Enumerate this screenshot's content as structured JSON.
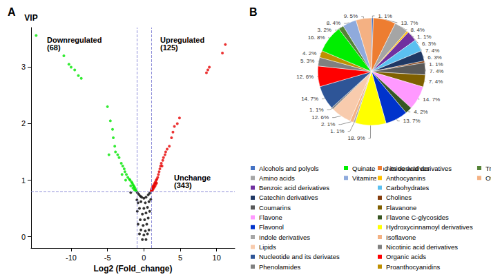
{
  "chart_data": [
    {
      "type": "scatter",
      "title": "A",
      "x_label": "Log2 (Fold_change)",
      "y_label": "VIP",
      "xlim": [
        -15.5,
        12.5
      ],
      "xticks": [
        -10,
        -5,
        0,
        5,
        10
      ],
      "ylim": [
        -0.2,
        3.7
      ],
      "yticks": [
        0,
        1,
        2,
        3
      ],
      "grid": false,
      "marker": "circle",
      "thresholds": {
        "x": [
          -1,
          1
        ],
        "y": 0.8,
        "line_style": "dashed",
        "color": "#8c8cd8"
      },
      "annotations": [
        "Downregulated\n(68)",
        "Upregulated\n(125)",
        "Unchange\n(343)"
      ],
      "series": [
        {
          "color": "#00e600",
          "x": [
            -14.8,
            -11,
            -10.3,
            -10,
            -9.5,
            -9,
            -8.6,
            -5,
            -4.6,
            -4.3,
            -4.2,
            -4,
            -3.9,
            -3.6,
            -3.4,
            -3.1,
            -2.9,
            -2.7,
            -2.6,
            -2.4,
            -2.2,
            -2,
            -1.9,
            -1.7,
            -1.6,
            -1.5,
            -1.4,
            -1.3,
            -1.2,
            -1.1,
            -1.05,
            -1.3,
            -1.5,
            -1.8,
            -2.5,
            -3,
            -4.8
          ],
          "values": [
            3.56,
            3.2,
            3.05,
            3.0,
            2.95,
            2.85,
            2.8,
            2.3,
            2.05,
            1.9,
            1.75,
            1.6,
            1.5,
            1.45,
            1.4,
            1.3,
            1.25,
            1.2,
            1.15,
            1.1,
            1.05,
            1.02,
            1.0,
            0.97,
            0.95,
            0.92,
            0.9,
            0.88,
            0.85,
            0.82,
            0.81,
            0.83,
            0.86,
            0.9,
            1.0,
            1.1,
            1.45
          ]
        },
        {
          "color": "#e60000",
          "x": [
            11.2,
            10.8,
            9,
            8.8,
            8.6,
            4.9,
            4.6,
            4.2,
            4.0,
            3.8,
            3.2,
            3.0,
            2.9,
            2.7,
            2.6,
            2.4,
            2.3,
            2.2,
            2.1,
            2.0,
            1.9,
            1.8,
            1.7,
            1.6,
            1.5,
            1.4,
            1.3,
            1.2,
            1.1,
            1.05,
            1.0,
            1.15,
            1.25,
            1.35,
            1.45,
            1.55,
            1.65,
            1.75,
            2.5,
            3.5
          ],
          "values": [
            3.4,
            3.25,
            3.0,
            2.95,
            2.9,
            2.1,
            2.0,
            1.95,
            1.85,
            1.75,
            1.55,
            1.5,
            1.45,
            1.4,
            1.35,
            1.3,
            1.25,
            1.2,
            1.15,
            1.1,
            1.05,
            1.02,
            1.0,
            0.97,
            0.95,
            0.92,
            0.9,
            0.88,
            0.85,
            0.83,
            0.81,
            0.82,
            0.84,
            0.86,
            0.88,
            0.9,
            0.93,
            0.95,
            1.25,
            1.6
          ]
        },
        {
          "color": "#000000",
          "x": [
            -0.9,
            -0.7,
            -0.5,
            -0.3,
            0,
            0.3,
            0.6,
            0.8,
            -0.8,
            -0.4,
            0.2,
            0.7,
            -0.6,
            0,
            0.5,
            -0.9,
            -0.2,
            0.3,
            0.8,
            -0.5,
            0.1,
            0.6,
            -0.8,
            -0.1,
            0.4,
            -0.4,
            0.2,
            0.7,
            -0.6,
            0,
            0.5,
            -0.2,
            0.3,
            -1.8,
            -0.95,
            0.95
          ],
          "values": [
            0.78,
            0.75,
            0.72,
            0.7,
            0.68,
            0.7,
            0.74,
            0.77,
            0.6,
            0.62,
            0.6,
            0.62,
            0.5,
            0.5,
            0.52,
            0.45,
            0.4,
            0.42,
            0.45,
            0.3,
            0.3,
            0.33,
            0.22,
            0.2,
            0.22,
            0.12,
            0.1,
            0.12,
            0.05,
            0.03,
            0.05,
            -0.05,
            -0.05,
            0.78,
            0.65,
            0.66
          ]
        }
      ]
    },
    {
      "type": "pie",
      "title": "B",
      "legend": "bottom",
      "data_labels": true,
      "categories": [
        "Alcohols and polyols",
        "Amino acid derivatives",
        "Amino acids",
        "Anthocyanins",
        "Benzoic acid derivatives",
        "Carbohydrates",
        "Catechin derivatives",
        "Cholines",
        "Coumarins",
        "Flavanone",
        "Flavone",
        "Flavone C-glycosides",
        "Flavonol",
        "Hydroxycinnamoyl derivatives",
        "Indole derivatives",
        "Isoflavone",
        "Lipids",
        "Nicotinic acid derivatives",
        "Nucleotide and its derivates",
        "Organic acids",
        "Phenolamides",
        "Proanthocyanidins",
        "Quinate and its derivatives",
        "Tryptamine derivatives",
        "Vitamins",
        "Others"
      ],
      "values": [
        1.1,
        13.7,
        8.4,
        1.1,
        6.3,
        7.4,
        6.3,
        1.1,
        7.4,
        7.4,
        14.7,
        4.2,
        13.7,
        18.9,
        1.1,
        2.1,
        12.6,
        1.1,
        14.7,
        12.6,
        5.3,
        4.2,
        16.8,
        3.2,
        8.4,
        9.5
      ],
      "value_labels": [
        "1. 1%",
        "13. 7%",
        "8. 4%",
        "1. 1%",
        "6. 3%",
        "7. 4%",
        "6. 3%",
        "1. 1%",
        "7. 4%",
        "7. 4%",
        "14. 7%",
        "4. 2%",
        "13. 7%",
        "18. 9%",
        "1. 1%",
        "2. 1%",
        "12. 6%",
        "1. 1%",
        "14. 7%",
        "12. 6%",
        "5. 3%",
        "4. 2%",
        "16. 8%",
        "3. 2%",
        "8. 4%",
        "9. 5%"
      ],
      "colors": [
        "#4472c4",
        "#ed7d31",
        "#a5a5a5",
        "#ffc000",
        "#7030a0",
        "#5bc0f0",
        "#1f3864",
        "#843c0c",
        "#595959",
        "#7f6000",
        "#ff99ff",
        "#375623",
        "#0033cc",
        "#ffff00",
        "#a6a6a6",
        "#f4b183",
        "#f8cbad",
        "#7f7f7f",
        "#2e5597",
        "#ff0000",
        "#808080",
        "#bf9000",
        "#00ee00",
        "#548235",
        "#8faadc",
        "#f4b183"
      ]
    }
  ]
}
